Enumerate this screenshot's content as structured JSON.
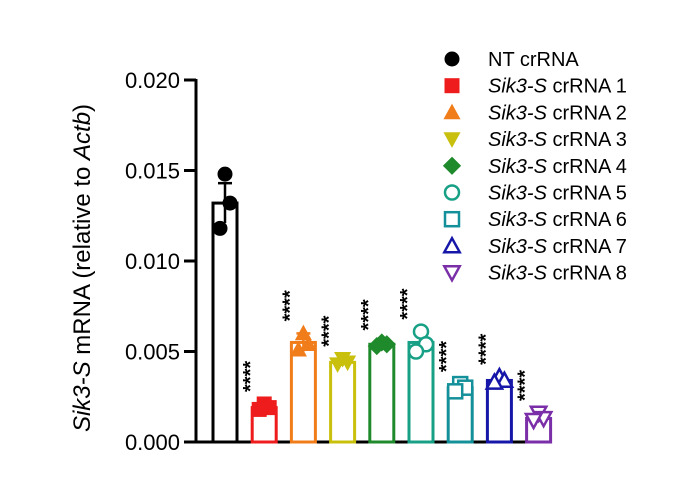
{
  "chart_data": {
    "type": "bar",
    "ylabel_parts": [
      {
        "text": "Sik3-S",
        "italic": true
      },
      {
        "text": " mRNA (relative to ",
        "italic": false
      },
      {
        "text": "Actb",
        "italic": true
      },
      {
        "text": ")",
        "italic": false
      }
    ],
    "ylim": [
      0,
      0.02
    ],
    "yticks": [
      {
        "value": 0.0,
        "label": "0.000"
      },
      {
        "value": 0.005,
        "label": "0.005"
      },
      {
        "value": 0.01,
        "label": "0.010"
      },
      {
        "value": 0.015,
        "label": "0.015"
      },
      {
        "value": 0.02,
        "label": "0.020"
      }
    ],
    "legend_position": "top-right",
    "series": [
      {
        "prefix": "",
        "suffix": "NT crRNA",
        "color": "#000000",
        "marker": "circle-filled",
        "mean": 0.0132,
        "sd": 0.0011,
        "points": [
          0.0148,
          0.0132,
          0.0118
        ],
        "sig": ""
      },
      {
        "prefix": "Sik3-S",
        "suffix": " crRNA 1",
        "color": "#ee1c1c",
        "marker": "square-filled",
        "mean": 0.0019,
        "sd": 0.0002,
        "points": [
          0.0021,
          0.0019,
          0.0018
        ],
        "sig": "****"
      },
      {
        "prefix": "Sik3-S",
        "suffix": " crRNA 2",
        "color": "#f07d1a",
        "marker": "triangle-up-filled",
        "mean": 0.0055,
        "sd": 0.0005,
        "points": [
          0.006,
          0.0054,
          0.0051
        ],
        "sig": "****"
      },
      {
        "prefix": "Sik3-S",
        "suffix": " crRNA 3",
        "color": "#c8c00c",
        "marker": "triangle-down-filled",
        "mean": 0.0044,
        "sd": 0.0002,
        "points": [
          0.0046,
          0.0044,
          0.0043
        ],
        "sig": "****"
      },
      {
        "prefix": "Sik3-S",
        "suffix": " crRNA 4",
        "color": "#1f8a2b",
        "marker": "diamond-filled",
        "mean": 0.0054,
        "sd": 0.0001,
        "points": [
          0.0055,
          0.0054,
          0.0053
        ],
        "sig": "****"
      },
      {
        "prefix": "Sik3-S",
        "suffix": " crRNA 5",
        "color": "#17a085",
        "marker": "circle-open",
        "mean": 0.0055,
        "sd": 0.0005,
        "points": [
          0.0061,
          0.0054,
          0.005
        ],
        "sig": "****"
      },
      {
        "prefix": "Sik3-S",
        "suffix": " crRNA 6",
        "color": "#14909a",
        "marker": "square-open",
        "mean": 0.003,
        "sd": 0.0002,
        "points": [
          0.0032,
          0.003,
          0.0028
        ],
        "sig": "****"
      },
      {
        "prefix": "Sik3-S",
        "suffix": " crRNA 7",
        "color": "#1616a8",
        "marker": "triangle-up-open",
        "mean": 0.0034,
        "sd": 0.0002,
        "points": [
          0.0036,
          0.0034,
          0.0033
        ],
        "sig": "****"
      },
      {
        "prefix": "Sik3-S",
        "suffix": " crRNA 8",
        "color": "#7a2ea8",
        "marker": "triangle-down-open",
        "mean": 0.0013,
        "sd": 0.0002,
        "points": [
          0.0016,
          0.0013,
          0.0012
        ],
        "sig": "****"
      }
    ]
  }
}
